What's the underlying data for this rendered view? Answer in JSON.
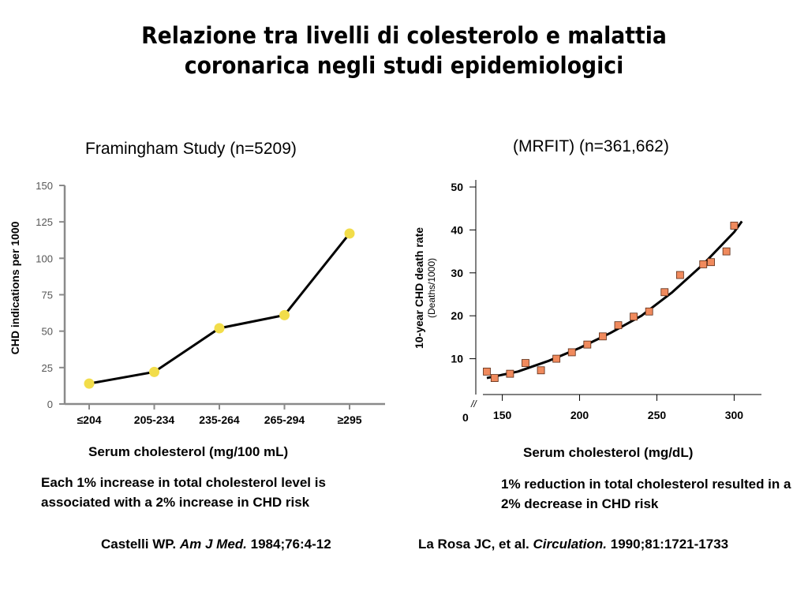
{
  "page": {
    "title_line1": "Relazione tra livelli di colesterolo e malattia",
    "title_line2": "coronarica negli studi epidemiologici"
  },
  "left": {
    "chart_title": "Framingham Study (n=5209)",
    "ylabel": "CHD indications per 1000",
    "xlabel": "Serum cholesterol (mg/100 mL)",
    "note": "Each 1% increase in total cholesterol level is associated with a 2% increase in CHD risk",
    "ref_author": "Castelli WP.",
    "ref_journal": "Am J Med.",
    "ref_details": "1984;76:4-12"
  },
  "right": {
    "chart_title": "(MRFIT) (n=361,662)",
    "ylabel_line1": "10-year CHD death rate",
    "ylabel_line2": "(Deaths/1000)",
    "xlabel": "Serum cholesterol (mg/dL)",
    "axis_break": "//",
    "origin_label": "0",
    "note": "1% reduction in total cholesterol resulted in a 2% decrease in CHD risk",
    "ref_author": "La Rosa JC, et al.",
    "ref_journal": "Circulation.",
    "ref_details": "1990;81:1721-1733"
  },
  "colors": {
    "framingham_marker": "#f2dd4a",
    "mrfit_marker": "#f08a5d",
    "line": "#000000",
    "axis_gray": "#8a8a8a"
  },
  "chart_data": [
    {
      "type": "line",
      "title": "Framingham Study (n=5209)",
      "xlabel": "Serum cholesterol (mg/100 mL)",
      "ylabel": "CHD indications per 1000",
      "categories": [
        "≤204",
        "205-234",
        "235-264",
        "265-294",
        "≥295"
      ],
      "series": [
        {
          "values": [
            14,
            22,
            52,
            61,
            117
          ]
        }
      ],
      "ylim": [
        0,
        150
      ],
      "yticks": [
        "0",
        "25",
        "50",
        "75",
        "100",
        "125",
        "150"
      ],
      "grid": false
    },
    {
      "type": "scatter",
      "title": "(MRFIT) (n=361,662)",
      "xlabel": "Serum cholesterol (mg/dL)",
      "ylabel": "10-year CHD death rate (Deaths/1000)",
      "xticks": [
        "150",
        "200",
        "250",
        "300"
      ],
      "yticks": [
        "10",
        "20",
        "30",
        "40",
        "50"
      ],
      "xlim": [
        140,
        310
      ],
      "ylim": [
        0,
        50
      ],
      "points": {
        "x": [
          140,
          145,
          155,
          165,
          175,
          185,
          195,
          205,
          215,
          225,
          235,
          245,
          255,
          265,
          280,
          285,
          295,
          300
        ],
        "y": [
          7,
          5.5,
          6.5,
          9,
          7.3,
          10,
          11.5,
          13.3,
          15.2,
          17.8,
          19.8,
          21,
          25.5,
          29.5,
          32,
          32.5,
          35,
          41
        ]
      },
      "fit_curve": {
        "x": [
          140,
          160,
          180,
          200,
          220,
          240,
          260,
          280,
          300,
          305
        ],
        "y": [
          5.5,
          7,
          9.5,
          12.5,
          16,
          20,
          25.5,
          32,
          39.5,
          42
        ]
      },
      "grid": false
    }
  ]
}
